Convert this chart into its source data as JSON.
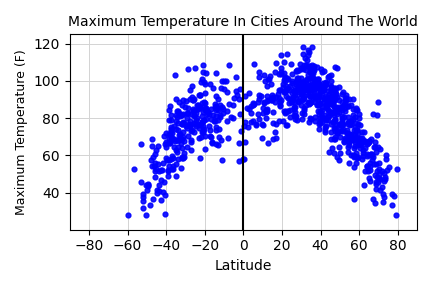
{
  "title": "Maximum Temperature In Cities Around The World",
  "xlabel": "Latitude",
  "ylabel": "Maximum Temperature (F)",
  "xlim": [
    -90,
    90
  ],
  "ylim": [
    20,
    125
  ],
  "xticks": [
    -80,
    -60,
    -40,
    -20,
    0,
    20,
    40,
    60,
    80
  ],
  "yticks": [
    40,
    60,
    80,
    100,
    120
  ],
  "dot_color": "blue",
  "dot_size": 12,
  "vline_x": 0,
  "vline_color": "black",
  "grid": true,
  "seed": 99
}
